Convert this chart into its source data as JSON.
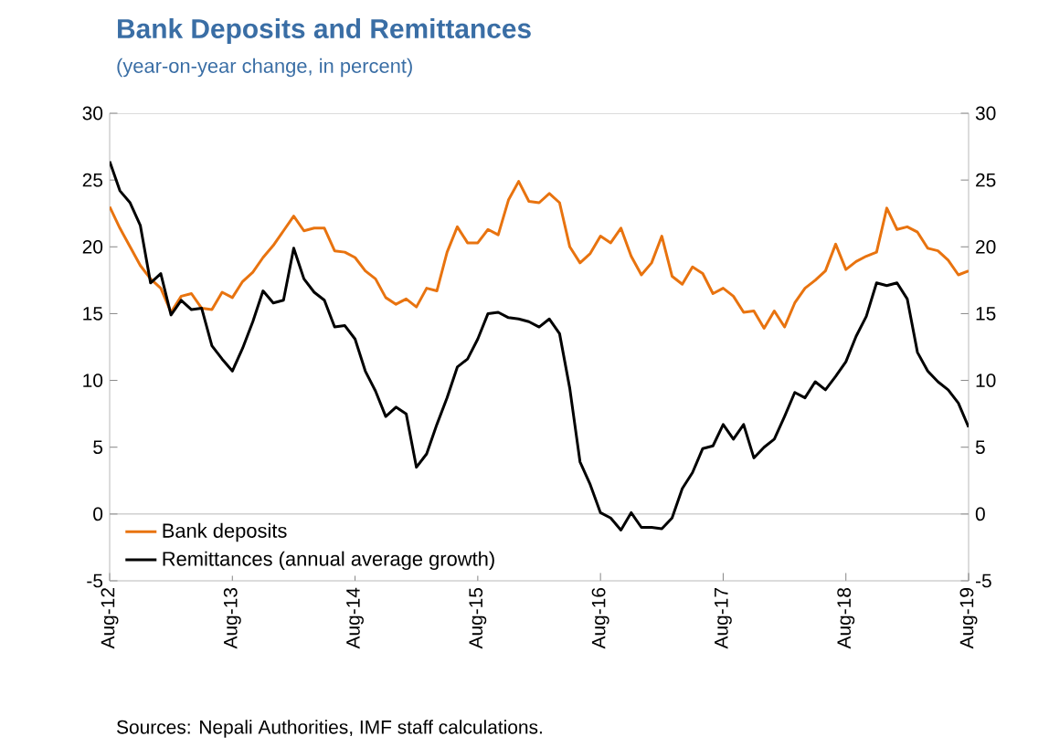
{
  "chart_data": {
    "type": "line",
    "title": "Bank Deposits and Remittances",
    "subtitle": "(year-on-year change, in percent)",
    "annotations": [
      "Sources: Nepali Authorities, IMF staff calculations."
    ],
    "x": [
      "2012-08",
      "2012-09",
      "2012-10",
      "2012-11",
      "2012-12",
      "2013-01",
      "2013-02",
      "2013-03",
      "2013-04",
      "2013-05",
      "2013-06",
      "2013-07",
      "2013-08",
      "2013-09",
      "2013-10",
      "2013-11",
      "2013-12",
      "2014-01",
      "2014-02",
      "2014-03",
      "2014-04",
      "2014-05",
      "2014-06",
      "2014-07",
      "2014-08",
      "2014-09",
      "2014-10",
      "2014-11",
      "2014-12",
      "2015-01",
      "2015-02",
      "2015-03",
      "2015-04",
      "2015-05",
      "2015-06",
      "2015-07",
      "2015-08",
      "2015-09",
      "2015-10",
      "2015-11",
      "2015-12",
      "2016-01",
      "2016-02",
      "2016-03",
      "2016-04",
      "2016-05",
      "2016-06",
      "2016-07",
      "2016-08",
      "2016-09",
      "2016-10",
      "2016-11",
      "2016-12",
      "2017-01",
      "2017-02",
      "2017-03",
      "2017-04",
      "2017-05",
      "2017-06",
      "2017-07",
      "2017-08",
      "2017-09",
      "2017-10",
      "2017-11",
      "2017-12",
      "2018-01",
      "2018-02",
      "2018-03",
      "2018-04",
      "2018-05",
      "2018-06",
      "2018-07",
      "2018-08",
      "2018-09",
      "2018-10",
      "2018-11",
      "2018-12",
      "2019-01",
      "2019-02",
      "2019-03",
      "2019-04",
      "2019-05",
      "2019-06",
      "2019-07",
      "2019-08"
    ],
    "series": [
      {
        "name": "Bank deposits",
        "color": "#e8730f",
        "values": [
          23.0,
          21.4,
          20.0,
          18.6,
          17.6,
          16.9,
          15.1,
          16.3,
          16.5,
          15.4,
          15.3,
          16.6,
          16.2,
          17.4,
          18.1,
          19.2,
          20.1,
          21.2,
          22.3,
          21.2,
          21.4,
          21.4,
          19.7,
          19.6,
          19.2,
          18.2,
          17.6,
          16.2,
          15.7,
          16.1,
          15.5,
          16.9,
          16.7,
          19.6,
          21.5,
          20.3,
          20.3,
          21.3,
          20.9,
          23.5,
          24.9,
          23.4,
          23.3,
          24.0,
          23.3,
          20.0,
          18.8,
          19.5,
          20.8,
          20.3,
          21.4,
          19.3,
          17.9,
          18.8,
          20.8,
          17.8,
          17.2,
          18.5,
          18.0,
          16.5,
          16.9,
          16.3,
          15.1,
          15.2,
          13.9,
          15.2,
          14.0,
          15.8,
          16.9,
          17.5,
          18.2,
          20.2,
          18.3,
          18.9,
          19.3,
          19.6,
          22.9,
          21.3,
          21.5,
          21.1,
          19.9,
          19.7,
          19.0,
          17.9,
          18.2
        ]
      },
      {
        "name": "Remittances (annual average growth)",
        "color": "#000000",
        "values": [
          26.4,
          24.2,
          23.3,
          21.6,
          17.3,
          18.0,
          14.9,
          16.0,
          15.3,
          15.4,
          12.6,
          11.6,
          10.7,
          12.4,
          14.4,
          16.7,
          15.8,
          16.0,
          19.9,
          17.6,
          16.6,
          16.0,
          14.0,
          14.1,
          13.1,
          10.7,
          9.2,
          7.3,
          8.0,
          7.5,
          3.5,
          4.5,
          6.7,
          8.7,
          11.0,
          11.6,
          13.1,
          15.0,
          15.1,
          14.7,
          14.6,
          14.4,
          14.0,
          14.6,
          13.5,
          9.4,
          3.9,
          2.2,
          0.1,
          -0.3,
          -1.2,
          0.1,
          -1.0,
          -1.0,
          -1.1,
          -0.3,
          1.9,
          3.1,
          4.9,
          5.1,
          6.7,
          5.6,
          6.7,
          4.2,
          5.0,
          5.6,
          7.3,
          9.1,
          8.7,
          9.9,
          9.3,
          10.3,
          11.4,
          13.3,
          14.8,
          17.3,
          17.1,
          17.3,
          16.1,
          12.1,
          10.7,
          9.9,
          9.3,
          8.3,
          6.5
        ]
      }
    ],
    "xlim": [
      "2012-08",
      "2019-08"
    ],
    "xticks": [
      {
        "value": "2012-08",
        "label": "Aug-12"
      },
      {
        "value": "2013-08",
        "label": "Aug-13"
      },
      {
        "value": "2014-08",
        "label": "Aug-14"
      },
      {
        "value": "2015-08",
        "label": "Aug-15"
      },
      {
        "value": "2016-08",
        "label": "Aug-16"
      },
      {
        "value": "2017-08",
        "label": "Aug-17"
      },
      {
        "value": "2018-08",
        "label": "Aug-18"
      },
      {
        "value": "2019-08",
        "label": "Aug-19"
      }
    ],
    "ylim": [
      -5,
      30
    ],
    "yticks": [
      -5,
      0,
      5,
      10,
      15,
      20,
      25,
      30
    ],
    "y2lim": [
      -5,
      30
    ],
    "y2ticks": [
      -5,
      0,
      5,
      10,
      15,
      20,
      25,
      30
    ],
    "ref_lines": [
      {
        "axis": "y",
        "value": 0,
        "color": "#a6a6a6"
      }
    ],
    "legend": "bottom left",
    "marker": "none",
    "line_style": "solid",
    "grid": false
  }
}
